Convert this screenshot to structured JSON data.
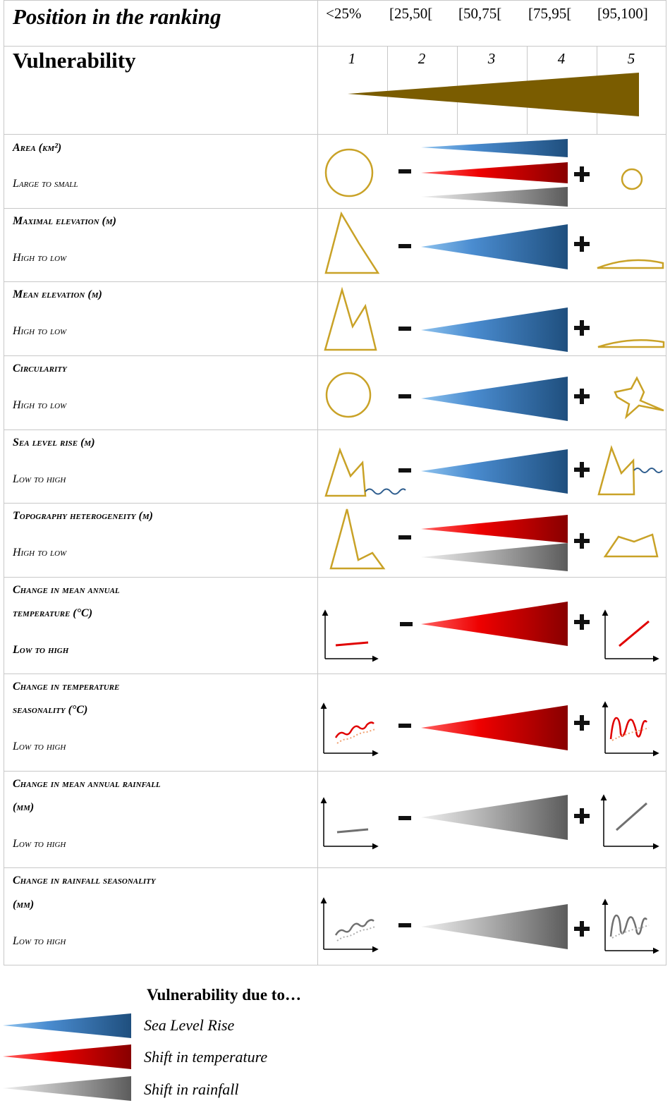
{
  "header": {
    "position_label": "Position in the ranking",
    "ranges": [
      "<25%",
      "[25,50[",
      "[50,75[",
      "[75,95[",
      "[95,100]"
    ],
    "vulnerability_label": "Vulnerability",
    "levels": [
      "1",
      "2",
      "3",
      "4",
      "5"
    ]
  },
  "signs": {
    "minus": "-",
    "plus": "+"
  },
  "colors": {
    "vulnerability": "#7a5c00",
    "sea_level_rise": "#2e5d8e",
    "temperature": "#c00000",
    "rainfall": "#707070",
    "icon_outline": "#c9a227"
  },
  "rows": [
    {
      "line1": "Area (km²)",
      "line2": "",
      "line3": "Large to small",
      "drivers": [
        "sea_level_rise",
        "temperature",
        "rainfall"
      ],
      "icon_low": "large-circle",
      "icon_high": "small-circle"
    },
    {
      "line1": "Maximal elevation (m)",
      "line2": "",
      "line3": "High to low",
      "drivers": [
        "sea_level_rise"
      ],
      "icon_low": "tall-peak",
      "icon_high": "flat-island"
    },
    {
      "line1": "Mean elevation (m)",
      "line2": "",
      "line3": "High to low",
      "drivers": [
        "sea_level_rise"
      ],
      "icon_low": "double-peak",
      "icon_high": "flat-island"
    },
    {
      "line1": "Circularity",
      "line2": "",
      "line3": "High to low",
      "drivers": [
        "sea_level_rise"
      ],
      "icon_low": "circle",
      "icon_high": "irregular-star"
    },
    {
      "line1": "Sea level rise (m)",
      "line2": "",
      "line3": "Low to high",
      "drivers": [
        "sea_level_rise"
      ],
      "icon_low": "mountain-low-water",
      "icon_high": "mountain-high-water"
    },
    {
      "line1": "Topography heterogeneity (m)",
      "line2": "",
      "line3": "High to low",
      "drivers": [
        "temperature",
        "rainfall"
      ],
      "icon_low": "steep-peak",
      "icon_high": "plateau"
    },
    {
      "line1": "Change in mean annual",
      "line2": "temperature (°C)",
      "line3": "Low to high",
      "drivers": [
        "temperature"
      ],
      "icon_low": "flat-line-graph",
      "icon_high": "rising-line-graph"
    },
    {
      "line1": "Change in temperature",
      "line2": "seasonality (°C)",
      "line3": "Low to high",
      "drivers": [
        "temperature"
      ],
      "icon_low": "small-wave-graph",
      "icon_high": "large-wave-graph"
    },
    {
      "line1": "Change in mean annual rainfall",
      "line2": "(mm)",
      "line3": "Low to high",
      "drivers": [
        "rainfall"
      ],
      "icon_low": "flat-line-graph",
      "icon_high": "rising-line-graph"
    },
    {
      "line1": "Change in rainfall seasonality",
      "line2": "(mm)",
      "line3": "Low to high",
      "drivers": [
        "rainfall"
      ],
      "icon_low": "small-wave-graph",
      "icon_high": "large-wave-graph"
    }
  ],
  "legend": {
    "title": "Vulnerability due to…",
    "items": [
      {
        "key": "sea_level_rise",
        "label": "Sea Level Rise"
      },
      {
        "key": "temperature",
        "label": "Shift in temperature"
      },
      {
        "key": "rainfall",
        "label": "Shift in rainfall"
      }
    ]
  }
}
